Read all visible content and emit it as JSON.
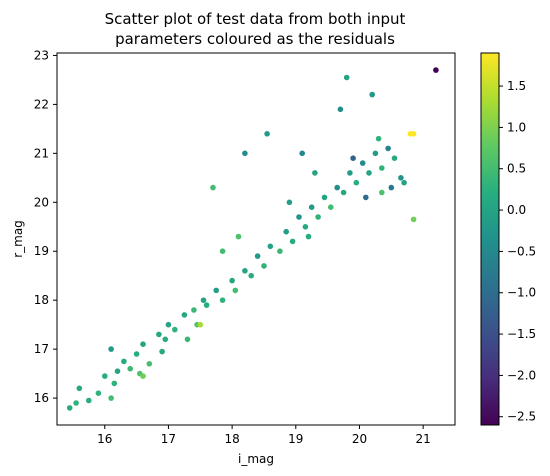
{
  "chart_data": {
    "type": "scatter",
    "title": "Scatter plot of test data from both input",
    "subtitle": "parameters coloured as the residuals",
    "xlabel": "i_mag",
    "ylabel": "r_mag",
    "xlim": [
      15.25,
      21.5
    ],
    "ylim": [
      15.45,
      23.05
    ],
    "xticks": [
      "16",
      "17",
      "18",
      "19",
      "20",
      "21"
    ],
    "yticks": [
      "16",
      "17",
      "18",
      "19",
      "20",
      "21",
      "22",
      "23"
    ],
    "colorbar": {
      "label": "",
      "range": [
        -2.6,
        1.9
      ],
      "ticks": [
        "1.5",
        "1.0",
        "0.5",
        "0.0",
        "-0.5",
        "-1.0",
        "-1.5",
        "-2.0",
        "-2.5"
      ],
      "colormap": "viridis"
    },
    "points": [
      [
        15.45,
        15.8,
        0.2
      ],
      [
        15.55,
        15.9,
        0.3
      ],
      [
        15.6,
        16.2,
        0.1
      ],
      [
        15.75,
        15.95,
        0.2
      ],
      [
        15.9,
        16.1,
        0.3
      ],
      [
        16.1,
        16.0,
        0.5
      ],
      [
        16.15,
        16.3,
        0.3
      ],
      [
        16.0,
        16.45,
        0.2
      ],
      [
        16.2,
        16.55,
        0.0
      ],
      [
        16.1,
        17.0,
        -0.2
      ],
      [
        16.3,
        16.75,
        0.1
      ],
      [
        16.4,
        16.6,
        0.4
      ],
      [
        16.5,
        16.9,
        0.2
      ],
      [
        16.6,
        17.1,
        0.0
      ],
      [
        16.55,
        16.5,
        0.6
      ],
      [
        16.7,
        16.7,
        0.5
      ],
      [
        16.85,
        17.3,
        0.1
      ],
      [
        16.95,
        17.2,
        0.2
      ],
      [
        17.0,
        17.5,
        0.0
      ],
      [
        17.1,
        17.4,
        0.3
      ],
      [
        17.25,
        17.7,
        0.1
      ],
      [
        17.4,
        17.8,
        0.4
      ],
      [
        17.45,
        17.5,
        0.6
      ],
      [
        17.55,
        18.0,
        0.0
      ],
      [
        17.6,
        17.9,
        0.2
      ],
      [
        17.75,
        18.2,
        -0.1
      ],
      [
        17.85,
        18.0,
        0.3
      ],
      [
        18.0,
        18.4,
        0.1
      ],
      [
        18.05,
        18.2,
        0.5
      ],
      [
        18.2,
        18.6,
        0.0
      ],
      [
        18.3,
        18.5,
        0.2
      ],
      [
        18.4,
        18.9,
        -0.2
      ],
      [
        18.5,
        18.7,
        0.3
      ],
      [
        18.6,
        19.1,
        0.0
      ],
      [
        18.75,
        19.0,
        0.4
      ],
      [
        18.85,
        19.4,
        -0.1
      ],
      [
        18.95,
        19.2,
        0.2
      ],
      [
        19.05,
        19.7,
        -0.3
      ],
      [
        19.15,
        19.5,
        0.1
      ],
      [
        19.25,
        19.9,
        -0.2
      ],
      [
        19.35,
        19.7,
        0.3
      ],
      [
        19.45,
        20.1,
        0.0
      ],
      [
        19.55,
        19.9,
        0.5
      ],
      [
        19.65,
        20.3,
        -0.4
      ],
      [
        19.75,
        20.2,
        0.1
      ],
      [
        19.85,
        20.6,
        -0.1
      ],
      [
        19.95,
        20.4,
        0.2
      ],
      [
        20.05,
        20.8,
        -0.5
      ],
      [
        20.15,
        20.6,
        0.0
      ],
      [
        20.25,
        21.0,
        -0.2
      ],
      [
        20.35,
        20.7,
        0.3
      ],
      [
        20.45,
        21.1,
        -0.6
      ],
      [
        20.55,
        20.9,
        0.1
      ],
      [
        20.65,
        20.5,
        -0.3
      ],
      [
        20.7,
        20.4,
        0.0
      ],
      [
        19.8,
        22.55,
        0.0
      ],
      [
        20.2,
        22.2,
        -0.2
      ],
      [
        20.3,
        21.3,
        0.3
      ],
      [
        19.7,
        21.9,
        -0.4
      ],
      [
        20.8,
        21.4,
        1.9
      ],
      [
        20.85,
        21.4,
        1.9
      ],
      [
        20.85,
        19.65,
        0.9
      ],
      [
        20.35,
        20.2,
        0.6
      ],
      [
        17.7,
        20.3,
        0.5
      ],
      [
        18.2,
        21.0,
        -0.4
      ],
      [
        18.55,
        21.4,
        -0.2
      ],
      [
        19.1,
        21.0,
        -0.5
      ],
      [
        19.3,
        20.6,
        0.0
      ],
      [
        19.2,
        19.3,
        0.2
      ],
      [
        18.9,
        20.0,
        -0.1
      ],
      [
        21.2,
        22.7,
        -2.6
      ],
      [
        16.6,
        16.45,
        0.9
      ],
      [
        17.85,
        19.0,
        0.5
      ],
      [
        17.5,
        17.5,
        1.3
      ],
      [
        16.9,
        16.95,
        0.1
      ],
      [
        18.1,
        19.3,
        0.6
      ],
      [
        17.3,
        17.2,
        0.4
      ],
      [
        20.1,
        20.1,
        -1.0
      ],
      [
        19.9,
        20.9,
        -1.2
      ],
      [
        20.5,
        20.3,
        -0.8
      ]
    ]
  }
}
